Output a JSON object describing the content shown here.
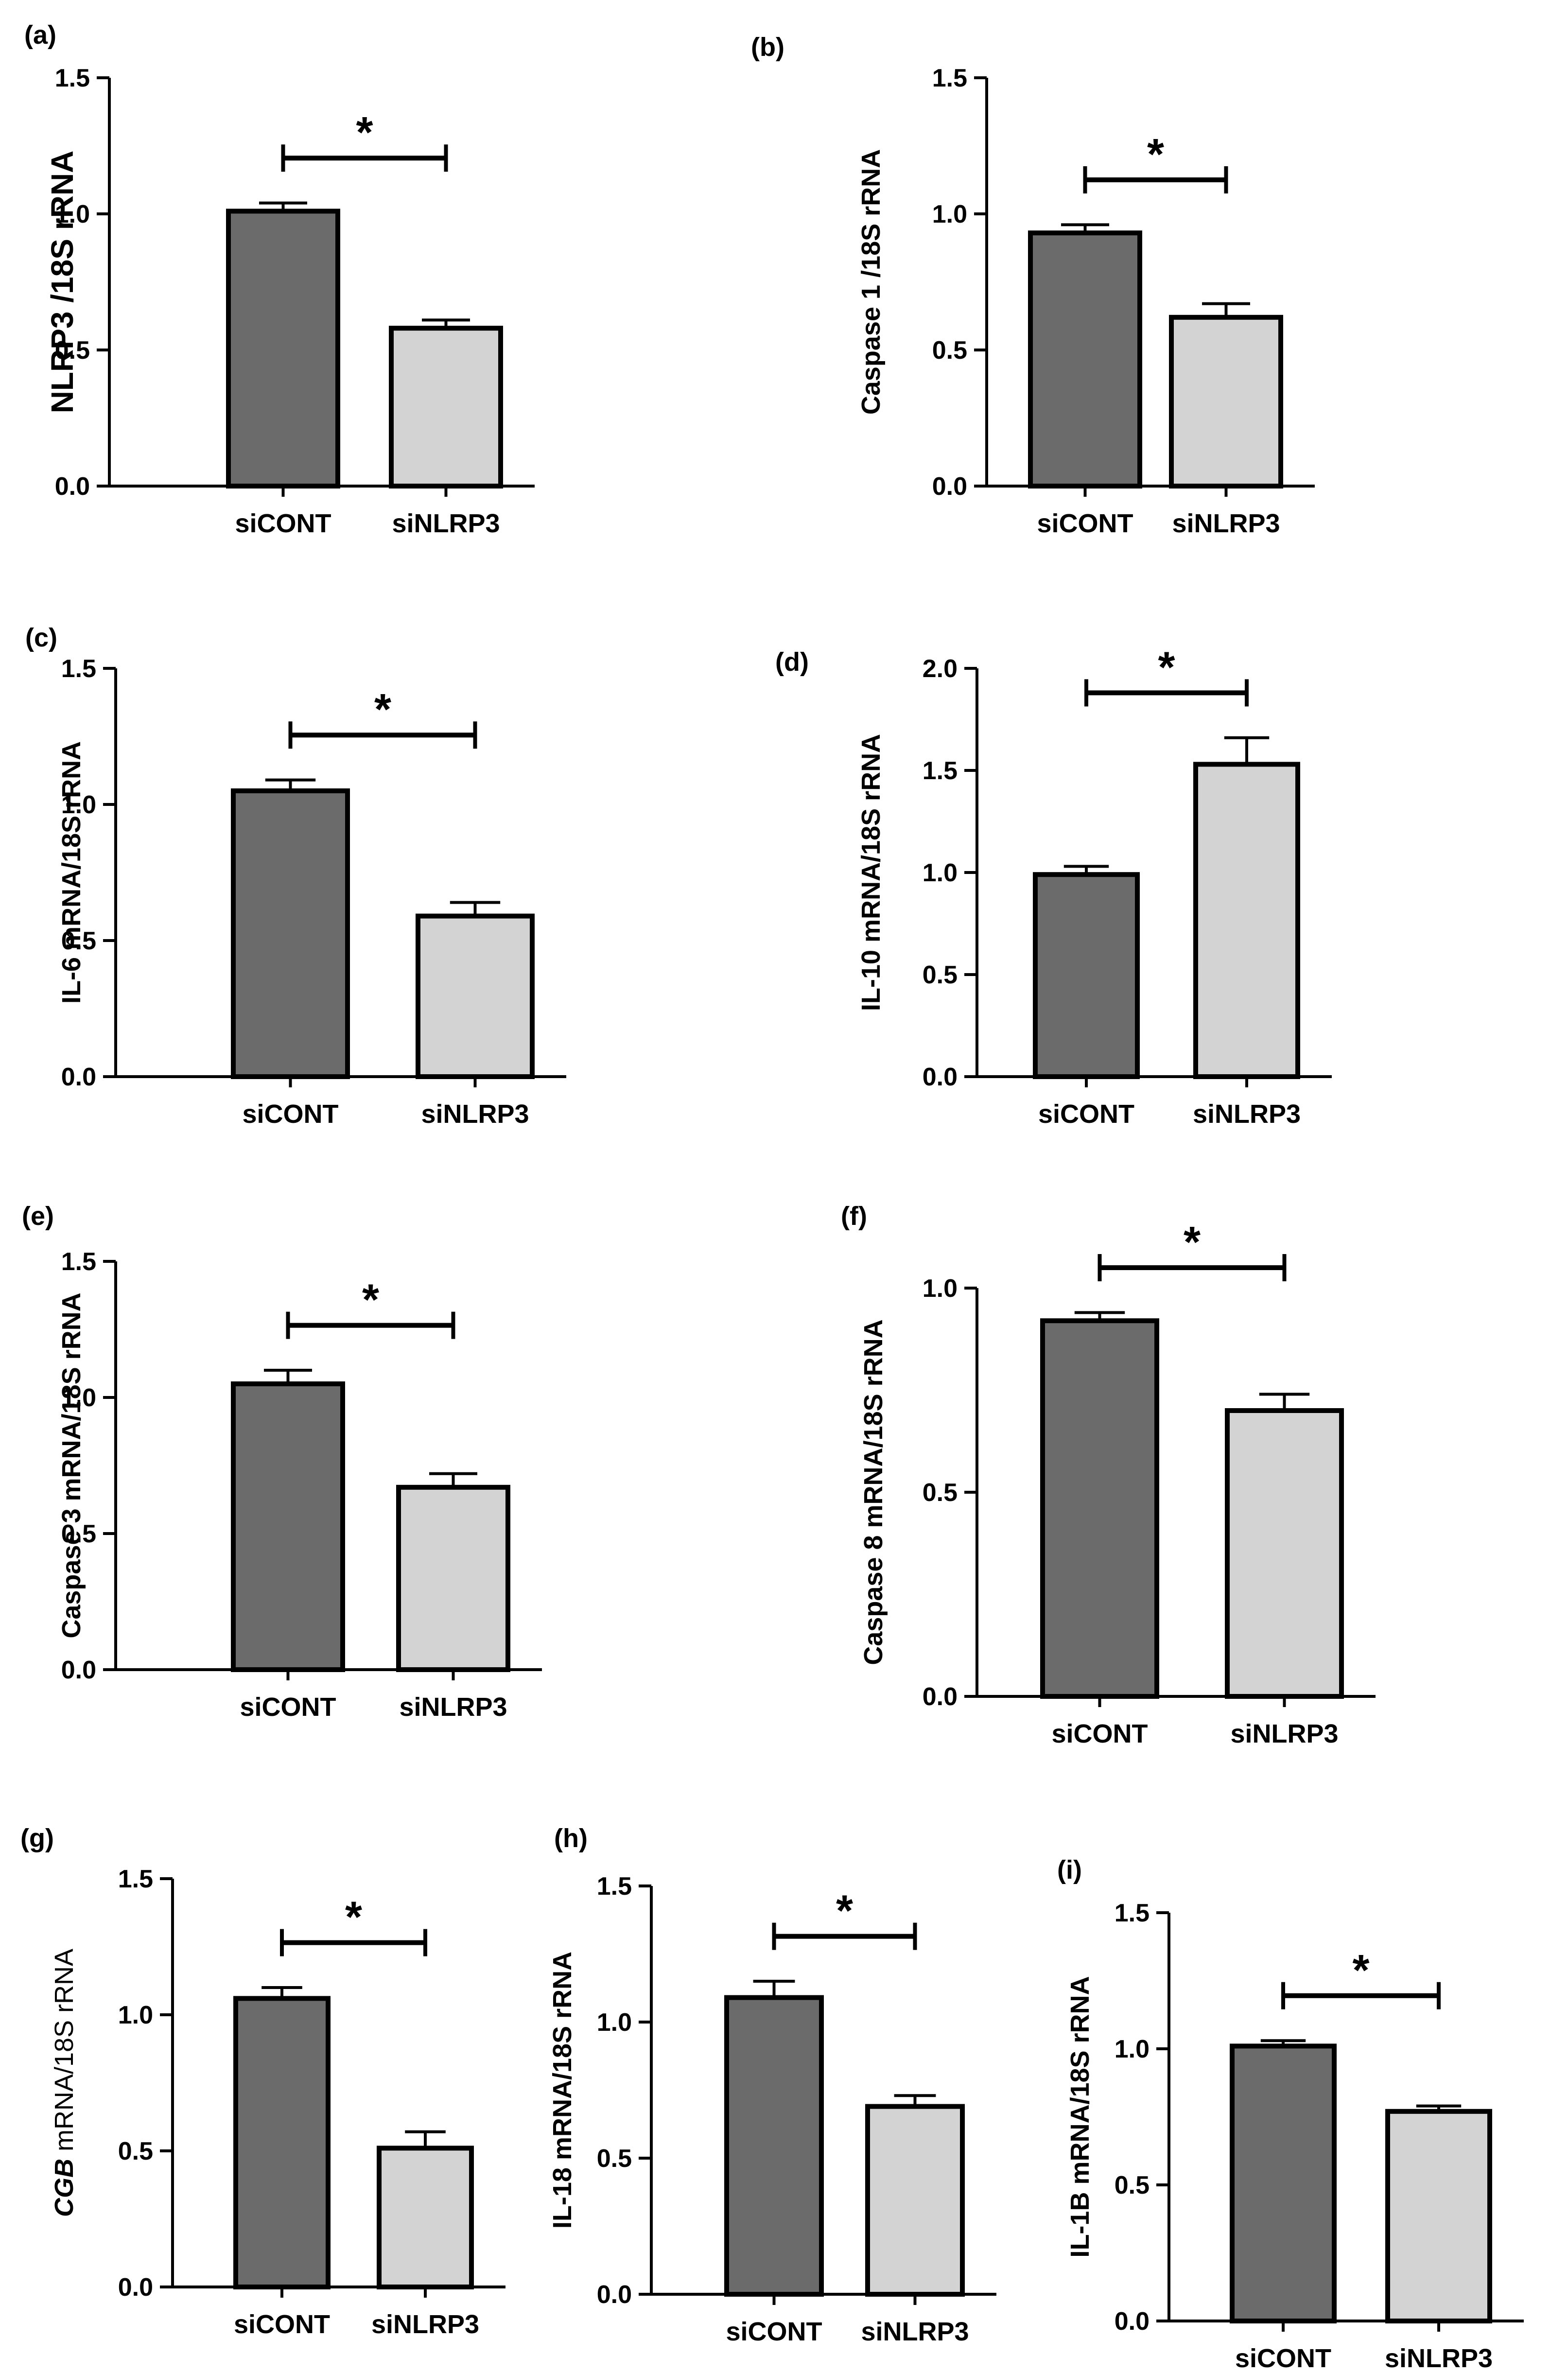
{
  "colors": {
    "control_bar": "#6b6b6b",
    "treatment_bar": "#d3d3d3",
    "stroke": "#000000"
  },
  "chart_data": [
    {
      "panel": "(a)",
      "type": "bar",
      "ylabel": "NLRP3 /18S rRNA",
      "categories": [
        "siCONT",
        "siNLRP3"
      ],
      "values": [
        1.01,
        0.58
      ],
      "errors": [
        0.03,
        0.03
      ],
      "ylim": [
        0,
        1.5
      ],
      "ticks": [
        "0.0",
        "0.5",
        "1.0",
        "1.5"
      ],
      "significance": "*"
    },
    {
      "panel": "(b)",
      "type": "bar",
      "ylabel": "Caspase 1 /18S rRNA",
      "categories": [
        "siCONT",
        "siNLRP3"
      ],
      "values": [
        0.93,
        0.62
      ],
      "errors": [
        0.03,
        0.05
      ],
      "ylim": [
        0,
        1.5
      ],
      "ticks": [
        "0.0",
        "0.5",
        "1.0",
        "1.5"
      ],
      "significance": "*"
    },
    {
      "panel": "(c)",
      "type": "bar",
      "ylabel": "IL-6 mRNA/18S rRNA",
      "categories": [
        "siCONT",
        "siNLRP3"
      ],
      "values": [
        1.05,
        0.59
      ],
      "errors": [
        0.04,
        0.05
      ],
      "ylim": [
        0,
        1.5
      ],
      "ticks": [
        "0.0",
        "0.5",
        "1.0",
        "1.5"
      ],
      "significance": "*"
    },
    {
      "panel": "(d)",
      "type": "bar",
      "ylabel": "IL-10 mRNA/18S rRNA",
      "categories": [
        "siCONT",
        "siNLRP3"
      ],
      "values": [
        0.99,
        1.53
      ],
      "errors": [
        0.04,
        0.13
      ],
      "ylim": [
        0,
        2.0
      ],
      "ticks": [
        "0.0",
        "0.5",
        "1.0",
        "1.5",
        "2.0"
      ],
      "significance": "*"
    },
    {
      "panel": "(e)",
      "type": "bar",
      "ylabel": "Caspase 3 mRNA/18S rRNA",
      "categories": [
        "siCONT",
        "siNLRP3"
      ],
      "values": [
        1.05,
        0.67
      ],
      "errors": [
        0.05,
        0.05
      ],
      "ylim": [
        0,
        1.5
      ],
      "ticks": [
        "0.0",
        "0.5",
        "1.0",
        "1.5"
      ],
      "significance": "*"
    },
    {
      "panel": "(f)",
      "type": "bar",
      "ylabel": "Caspase 8 mRNA/18S rRNA",
      "categories": [
        "siCONT",
        "siNLRP3"
      ],
      "values": [
        0.92,
        0.7
      ],
      "errors": [
        0.02,
        0.04
      ],
      "ylim": [
        0,
        1.0
      ],
      "ticks": [
        "0.0",
        "0.5",
        "1.0"
      ],
      "significance": "*"
    },
    {
      "panel": "(g)",
      "type": "bar",
      "ylabel_italic": "CGB",
      "ylabel": " mRNA/18S rRNA",
      "categories": [
        "siCONT",
        "siNLRP3"
      ],
      "values": [
        1.06,
        0.51
      ],
      "errors": [
        0.04,
        0.06
      ],
      "ylim": [
        0,
        1.5
      ],
      "ticks": [
        "0.0",
        "0.5",
        "1.0",
        "1.5"
      ],
      "significance": "*"
    },
    {
      "panel": "(h)",
      "type": "bar",
      "ylabel": "IL-18 mRNA/18S rRNA",
      "categories": [
        "siCONT",
        "siNLRP3"
      ],
      "values": [
        1.09,
        0.69
      ],
      "errors": [
        0.06,
        0.04
      ],
      "ylim": [
        0,
        1.5
      ],
      "ticks": [
        "0.0",
        "0.5",
        "1.0",
        "1.5"
      ],
      "significance": "*"
    },
    {
      "panel": "(i)",
      "type": "bar",
      "ylabel": "IL-1B mRNA/18S rRNA",
      "categories": [
        "siCONT",
        "siNLRP3"
      ],
      "values": [
        1.01,
        0.77
      ],
      "errors": [
        0.02,
        0.02
      ],
      "ylim": [
        0,
        1.5
      ],
      "ticks": [
        "0.0",
        "0.5",
        "1.0",
        "1.5"
      ],
      "significance": "*"
    }
  ]
}
